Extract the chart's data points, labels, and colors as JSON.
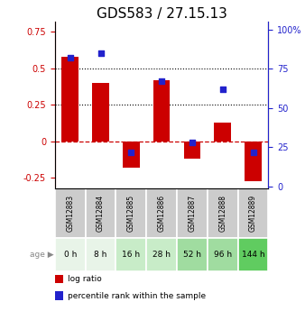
{
  "title": "GDS583 / 27.15.13",
  "samples": [
    "GSM12883",
    "GSM12884",
    "GSM12885",
    "GSM12886",
    "GSM12887",
    "GSM12888",
    "GSM12889"
  ],
  "ages": [
    "0 h",
    "8 h",
    "16 h",
    "28 h",
    "52 h",
    "96 h",
    "144 h"
  ],
  "log_ratio": [
    0.58,
    0.4,
    -0.18,
    0.42,
    -0.12,
    0.13,
    -0.27
  ],
  "percentile_rank": [
    82,
    85,
    22,
    67,
    28,
    62,
    22
  ],
  "bar_color": "#cc0000",
  "dot_color": "#2222cc",
  "left_axis_color": "#cc0000",
  "right_axis_color": "#2222cc",
  "ylim_left": [
    -0.32,
    0.82
  ],
  "ylim_right": [
    -1.066667,
    105
  ],
  "yticks_left": [
    -0.25,
    0,
    0.25,
    0.5,
    0.75
  ],
  "yticks_right": [
    0,
    25,
    50,
    75,
    100
  ],
  "ytick_labels_right": [
    "0",
    "25",
    "50",
    "75",
    "100%"
  ],
  "dotted_lines": [
    0.5,
    0.25
  ],
  "zero_line_color": "#cc0000",
  "age_bg_colors": [
    "#e8f4e8",
    "#e8f4e8",
    "#c8ecc8",
    "#c8ecc8",
    "#a0dca0",
    "#a0dca0",
    "#60cc60"
  ],
  "sample_bg_color": "#cccccc",
  "title_fontsize": 11,
  "bar_width": 0.55,
  "legend_items": [
    "log ratio",
    "percentile rank within the sample"
  ]
}
